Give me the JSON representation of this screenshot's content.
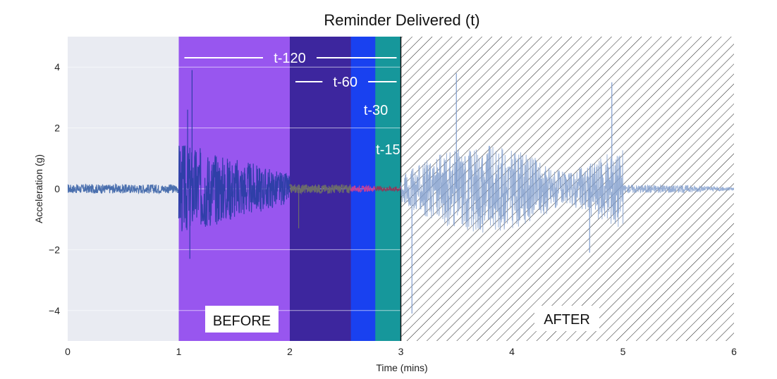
{
  "chart_data": {
    "type": "line",
    "title": "Reminder Delivered (t)",
    "xlabel": "Time (mins)",
    "ylabel": "Acceleration (g)",
    "xlim": [
      0,
      6
    ],
    "ylim": [
      -5,
      5
    ],
    "x_ticks": [
      0,
      1,
      2,
      3,
      4,
      5,
      6
    ],
    "y_ticks": [
      -4,
      -2,
      0,
      2,
      4
    ],
    "y_tick_labels": [
      "−4",
      "−2",
      "0",
      "2",
      "4"
    ],
    "plot_background": "#e9ebf2",
    "grid": true,
    "reminder_time": 3,
    "windows": [
      {
        "label": "t-120",
        "start": 1,
        "end": 3,
        "color": "#9856ef"
      },
      {
        "label": "t-60",
        "start": 2,
        "end": 3,
        "color": "#3d269e"
      },
      {
        "label": "t-30",
        "start": 2.55,
        "end": 3,
        "color": "#1941f0"
      },
      {
        "label": "t-15",
        "start": 2.77,
        "end": 3,
        "color": "#16979b"
      }
    ],
    "after_region": {
      "start": 3,
      "end": 6,
      "hatch": "diagonal"
    },
    "phase_labels": {
      "before": "BEFORE",
      "after": "AFTER"
    },
    "signal_segments": [
      {
        "start": 0,
        "end": 1,
        "color": "#4a6fae",
        "amplitude": 0.15
      },
      {
        "start": 1,
        "end": 2,
        "color": "#2f3fa8",
        "amplitude": 1.2
      },
      {
        "start": 2,
        "end": 2.55,
        "color": "#6b6b6b",
        "amplitude": 0.15
      },
      {
        "start": 2.55,
        "end": 2.77,
        "color": "#c2409a",
        "amplitude": 0.1
      },
      {
        "start": 2.77,
        "end": 3,
        "color": "#8a3b5c",
        "amplitude": 0.08
      },
      {
        "start": 3,
        "end": 6,
        "color": "#7f9ccc",
        "amplitude": 1.2
      }
    ],
    "peaks": [
      {
        "x": 1.08,
        "y": 2.6
      },
      {
        "x": 1.1,
        "y": -2.3
      },
      {
        "x": 1.12,
        "y": 3.9
      },
      {
        "x": 2.08,
        "y": -1.3
      },
      {
        "x": 3.1,
        "y": -4.1
      },
      {
        "x": 3.5,
        "y": 3.8
      },
      {
        "x": 4.7,
        "y": -2.1
      },
      {
        "x": 4.9,
        "y": 3.5
      }
    ]
  }
}
